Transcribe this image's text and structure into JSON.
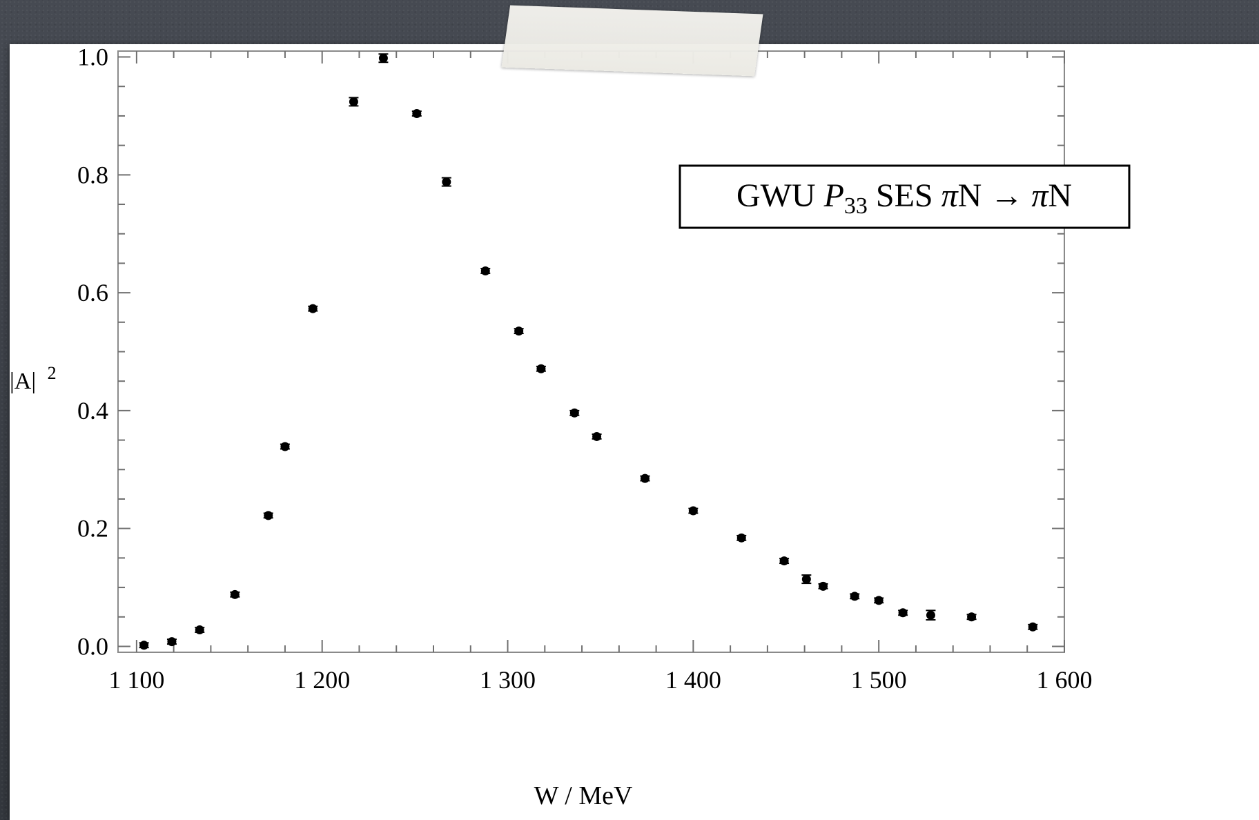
{
  "chart_data": {
    "type": "scatter",
    "xlabel": "W / MeV",
    "ylabel": "|A|",
    "ylabel_sup": "2",
    "xlim": [
      1090,
      1600
    ],
    "ylim": [
      -0.01,
      1.01
    ],
    "xticks": [
      1100,
      1200,
      1300,
      1400,
      1500,
      1600
    ],
    "xtick_labels": [
      "1 100",
      "1 200",
      "1 300",
      "1 400",
      "1 500",
      "1 600"
    ],
    "yticks": [
      0.0,
      0.2,
      0.4,
      0.6,
      0.8,
      1.0
    ],
    "ytick_labels": [
      "0.0",
      "0.2",
      "0.4",
      "0.6",
      "0.8",
      "1.0"
    ],
    "grid": false,
    "legend_box": {
      "prefix": "GWU ",
      "wave": "P",
      "wave_sub": "33",
      "suffix": " SES ",
      "reaction_a": "π",
      "reaction_b": "N → ",
      "reaction_c": "π",
      "reaction_d": "N",
      "placement": "top-right"
    },
    "marker_color": "#000000",
    "points": [
      {
        "x": 1104,
        "y": 0.002,
        "err": 0.004
      },
      {
        "x": 1119,
        "y": 0.008,
        "err": 0.004
      },
      {
        "x": 1134,
        "y": 0.028,
        "err": 0.004
      },
      {
        "x": 1153,
        "y": 0.088,
        "err": 0.004
      },
      {
        "x": 1171,
        "y": 0.222,
        "err": 0.004
      },
      {
        "x": 1180,
        "y": 0.339,
        "err": 0.004
      },
      {
        "x": 1195,
        "y": 0.573,
        "err": 0.004
      },
      {
        "x": 1217,
        "y": 0.924,
        "err": 0.007
      },
      {
        "x": 1233,
        "y": 0.998,
        "err": 0.007
      },
      {
        "x": 1251,
        "y": 0.904,
        "err": 0.004
      },
      {
        "x": 1267,
        "y": 0.788,
        "err": 0.007
      },
      {
        "x": 1288,
        "y": 0.637,
        "err": 0.004
      },
      {
        "x": 1306,
        "y": 0.535,
        "err": 0.004
      },
      {
        "x": 1318,
        "y": 0.471,
        "err": 0.004
      },
      {
        "x": 1336,
        "y": 0.396,
        "err": 0.004
      },
      {
        "x": 1348,
        "y": 0.356,
        "err": 0.004
      },
      {
        "x": 1374,
        "y": 0.285,
        "err": 0.004
      },
      {
        "x": 1400,
        "y": 0.23,
        "err": 0.004
      },
      {
        "x": 1426,
        "y": 0.184,
        "err": 0.004
      },
      {
        "x": 1449,
        "y": 0.145,
        "err": 0.004
      },
      {
        "x": 1461,
        "y": 0.114,
        "err": 0.007
      },
      {
        "x": 1470,
        "y": 0.102,
        "err": 0.004
      },
      {
        "x": 1487,
        "y": 0.085,
        "err": 0.004
      },
      {
        "x": 1500,
        "y": 0.078,
        "err": 0.004
      },
      {
        "x": 1513,
        "y": 0.057,
        "err": 0.004
      },
      {
        "x": 1528,
        "y": 0.053,
        "err": 0.008
      },
      {
        "x": 1550,
        "y": 0.05,
        "err": 0.004
      },
      {
        "x": 1583,
        "y": 0.033,
        "err": 0.004
      }
    ]
  }
}
